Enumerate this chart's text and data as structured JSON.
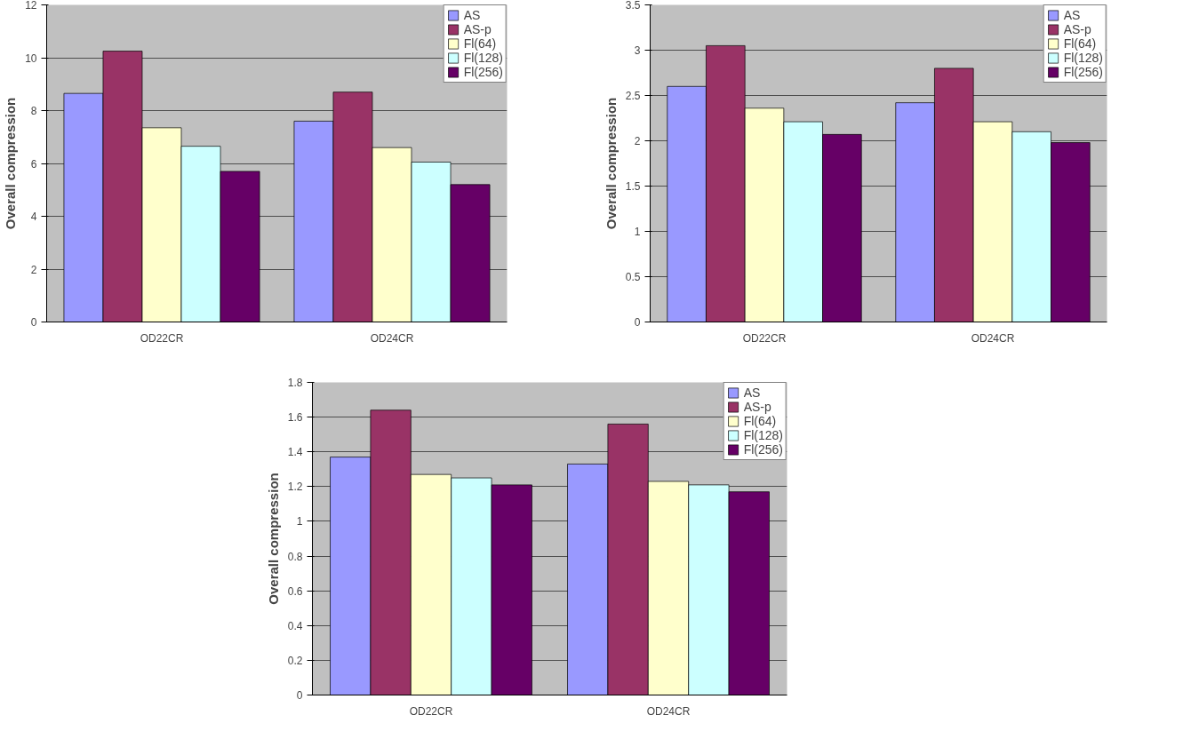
{
  "chart_data": [
    {
      "type": "bar",
      "ylabel": "Overall compression",
      "categories": [
        "OD22CR",
        "OD24CR"
      ],
      "ylim": [
        0,
        12
      ],
      "yticks": [
        0,
        2,
        4,
        6,
        8,
        10,
        12
      ],
      "grid": "y",
      "legend": "top right",
      "series": [
        {
          "name": "AS",
          "color": "#9999ff",
          "values": [
            8.65,
            7.6
          ]
        },
        {
          "name": "AS-p",
          "color": "#993366",
          "values": [
            10.25,
            8.7
          ]
        },
        {
          "name": "Fl(64)",
          "color": "#ffffcc",
          "values": [
            7.35,
            6.6
          ]
        },
        {
          "name": "Fl(128)",
          "color": "#ccffff",
          "values": [
            6.65,
            6.05
          ]
        },
        {
          "name": "Fl(256)",
          "color": "#660066",
          "values": [
            5.7,
            5.2
          ]
        }
      ]
    },
    {
      "type": "bar",
      "ylabel": "Overall compression",
      "categories": [
        "OD22CR",
        "OD24CR"
      ],
      "ylim": [
        0,
        3.5
      ],
      "yticks": [
        0,
        0.5,
        1,
        1.5,
        2,
        2.5,
        3,
        3.5
      ],
      "grid": "y",
      "legend": "top right",
      "series": [
        {
          "name": "AS",
          "color": "#9999ff",
          "values": [
            2.6,
            2.42
          ]
        },
        {
          "name": "AS-p",
          "color": "#993366",
          "values": [
            3.05,
            2.8
          ]
        },
        {
          "name": "Fl(64)",
          "color": "#ffffcc",
          "values": [
            2.36,
            2.21
          ]
        },
        {
          "name": "Fl(128)",
          "color": "#ccffff",
          "values": [
            2.21,
            2.1
          ]
        },
        {
          "name": "Fl(256)",
          "color": "#660066",
          "values": [
            2.07,
            1.98
          ]
        }
      ]
    },
    {
      "type": "bar",
      "ylabel": "Overall compression",
      "categories": [
        "OD22CR",
        "OD24CR"
      ],
      "ylim": [
        0,
        1.8
      ],
      "yticks": [
        0,
        0.2,
        0.4,
        0.6,
        0.8,
        1,
        1.2,
        1.4,
        1.6,
        1.8
      ],
      "grid": "y",
      "legend": "top right",
      "series": [
        {
          "name": "AS",
          "color": "#9999ff",
          "values": [
            1.37,
            1.33
          ]
        },
        {
          "name": "AS-p",
          "color": "#993366",
          "values": [
            1.64,
            1.56
          ]
        },
        {
          "name": "Fl(64)",
          "color": "#ffffcc",
          "values": [
            1.27,
            1.23
          ]
        },
        {
          "name": "Fl(128)",
          "color": "#ccffff",
          "values": [
            1.25,
            1.21
          ]
        },
        {
          "name": "Fl(256)",
          "color": "#660066",
          "values": [
            1.21,
            1.17
          ]
        }
      ]
    }
  ]
}
